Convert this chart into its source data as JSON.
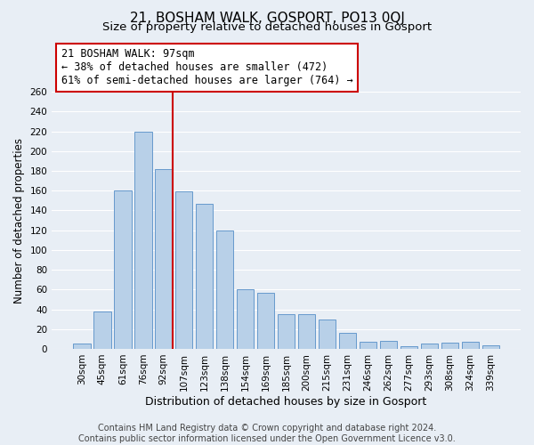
{
  "title1": "21, BOSHAM WALK, GOSPORT, PO13 0QJ",
  "title2": "Size of property relative to detached houses in Gosport",
  "xlabel": "Distribution of detached houses by size in Gosport",
  "ylabel": "Number of detached properties",
  "categories": [
    "30sqm",
    "45sqm",
    "61sqm",
    "76sqm",
    "92sqm",
    "107sqm",
    "123sqm",
    "138sqm",
    "154sqm",
    "169sqm",
    "185sqm",
    "200sqm",
    "215sqm",
    "231sqm",
    "246sqm",
    "262sqm",
    "277sqm",
    "293sqm",
    "308sqm",
    "324sqm",
    "339sqm"
  ],
  "values": [
    5,
    38,
    160,
    220,
    182,
    159,
    147,
    120,
    60,
    57,
    35,
    35,
    30,
    16,
    7,
    8,
    3,
    5,
    6,
    7,
    4
  ],
  "bar_color": "#b8d0e8",
  "bar_edge_color": "#6699cc",
  "highlight_index": 4,
  "highlight_color": "#cc0000",
  "ylim": [
    0,
    260
  ],
  "yticks": [
    0,
    20,
    40,
    60,
    80,
    100,
    120,
    140,
    160,
    180,
    200,
    220,
    240,
    260
  ],
  "annotation_title": "21 BOSHAM WALK: 97sqm",
  "annotation_line1": "← 38% of detached houses are smaller (472)",
  "annotation_line2": "61% of semi-detached houses are larger (764) →",
  "annotation_box_color": "#ffffff",
  "annotation_box_edge": "#cc0000",
  "footer1": "Contains HM Land Registry data © Crown copyright and database right 2024.",
  "footer2": "Contains public sector information licensed under the Open Government Licence v3.0.",
  "plot_bg_color": "#e8eef5",
  "fig_bg_color": "#e8eef5",
  "grid_color": "#ffffff",
  "title1_fontsize": 11,
  "title2_fontsize": 9.5,
  "xlabel_fontsize": 9,
  "ylabel_fontsize": 8.5,
  "tick_fontsize": 7.5,
  "footer_fontsize": 7,
  "annotation_fontsize": 8.5
}
